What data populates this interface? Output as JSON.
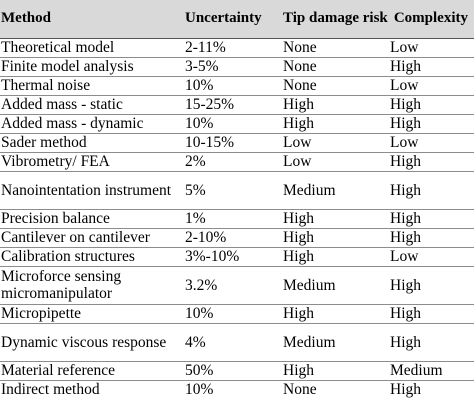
{
  "headers": {
    "method": "Method",
    "uncertainty": "Uncertainty",
    "tip_damage": "Tip damage risk",
    "complexity": "Complexity"
  },
  "rows": [
    {
      "method": "Theoretical model",
      "uncertainty": "2-11%",
      "tip_damage": "None",
      "complexity": "Low"
    },
    {
      "method": "Finite model analysis",
      "uncertainty": "3-5%",
      "tip_damage": "None",
      "complexity": "High"
    },
    {
      "method": "Thermal noise",
      "uncertainty": "10%",
      "tip_damage": "None",
      "complexity": "Low"
    },
    {
      "method": "Added mass - static",
      "uncertainty": "15-25%",
      "tip_damage": "High",
      "complexity": "High"
    },
    {
      "method": "Added mass - dynamic",
      "uncertainty": "10%",
      "tip_damage": "High",
      "complexity": "High"
    },
    {
      "method": "Sader method",
      "uncertainty": "10-15%",
      "tip_damage": "Low",
      "complexity": "Low"
    },
    {
      "method": "Vibrometry/ FEA",
      "uncertainty": "2%",
      "tip_damage": "Low",
      "complexity": "High"
    },
    {
      "method": "Nanointentation instrument",
      "uncertainty": "5%",
      "tip_damage": "Medium",
      "complexity": "High"
    },
    {
      "method": "Precision balance",
      "uncertainty": "1%",
      "tip_damage": "High",
      "complexity": "High"
    },
    {
      "method": "Cantilever on cantilever",
      "uncertainty": "2-10%",
      "tip_damage": "High",
      "complexity": "High"
    },
    {
      "method": "Calibration structures",
      "uncertainty": "3%-10%",
      "tip_damage": "High",
      "complexity": "Low"
    },
    {
      "method": "Microforce sensing micromanipulator",
      "uncertainty": "3.2%",
      "tip_damage": "Medium",
      "complexity": "High"
    },
    {
      "method": "Micropipette",
      "uncertainty": "10%",
      "tip_damage": "High",
      "complexity": "High"
    },
    {
      "method": "Dynamic viscous response",
      "uncertainty": "4%",
      "tip_damage": "Medium",
      "complexity": "High"
    },
    {
      "method": "Material reference",
      "uncertainty": "50%",
      "tip_damage": "High",
      "complexity": "Medium"
    },
    {
      "method": "Indirect method",
      "uncertainty": "10%",
      "tip_damage": "None",
      "complexity": "High"
    }
  ]
}
